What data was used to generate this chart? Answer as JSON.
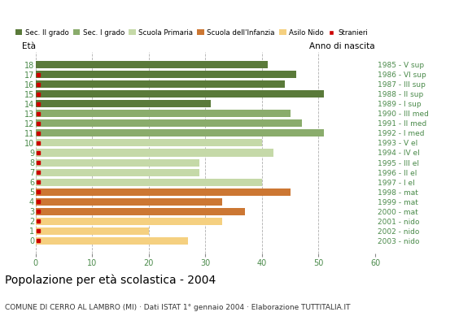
{
  "ages": [
    18,
    17,
    16,
    15,
    14,
    13,
    12,
    11,
    10,
    9,
    8,
    7,
    6,
    5,
    4,
    3,
    2,
    1,
    0
  ],
  "anno_di_nascita": [
    "1985 - V sup",
    "1986 - VI sup",
    "1987 - III sup",
    "1988 - II sup",
    "1989 - I sup",
    "1990 - III med",
    "1991 - II med",
    "1992 - I med",
    "1993 - V el",
    "1994 - IV el",
    "1995 - III el",
    "1996 - II el",
    "1997 - I el",
    "1998 - mat",
    "1999 - mat",
    "2000 - mat",
    "2001 - nido",
    "2002 - nido",
    "2003 - nido"
  ],
  "bar_values": [
    41,
    46,
    44,
    51,
    31,
    45,
    47,
    51,
    40,
    42,
    29,
    29,
    40,
    45,
    33,
    37,
    33,
    20,
    27
  ],
  "bar_colors": [
    "#5a7a3a",
    "#5a7a3a",
    "#5a7a3a",
    "#5a7a3a",
    "#5a7a3a",
    "#8aac6c",
    "#8aac6c",
    "#8aac6c",
    "#c5d9a8",
    "#c5d9a8",
    "#c5d9a8",
    "#c5d9a8",
    "#c5d9a8",
    "#cc7733",
    "#cc7733",
    "#cc7733",
    "#f5d080",
    "#f5d080",
    "#f5d080"
  ],
  "stranieri_show": [
    false,
    true,
    true,
    true,
    true,
    true,
    true,
    true,
    true,
    true,
    true,
    true,
    true,
    true,
    true,
    true,
    true,
    true,
    true
  ],
  "stranieri_color": "#cc0000",
  "legend_labels": [
    "Sec. II grado",
    "Sec. I grado",
    "Scuola Primaria",
    "Scuola dell'Infanzia",
    "Asilo Nido",
    "Stranieri"
  ],
  "legend_colors": [
    "#5a7a3a",
    "#8aac6c",
    "#c5d9a8",
    "#cc7733",
    "#f5d080",
    "#cc0000"
  ],
  "title": "Popolazione per età scolastica - 2004",
  "subtitle": "COMUNE DI CERRO AL LAMBRO (MI) · Dati ISTAT 1° gennaio 2004 · Elaborazione TUTTITALIA.IT",
  "ylabel_left": "Età",
  "ylabel_right": "Anno di nascita",
  "xlim": [
    0,
    60
  ],
  "xticks": [
    0,
    10,
    20,
    30,
    40,
    50,
    60
  ],
  "bar_height": 0.75,
  "fig_width": 5.8,
  "fig_height": 4.0,
  "dpi": 100,
  "background_color": "#ffffff",
  "grid_color": "#b0b0b0",
  "tick_color": "#4a8a4a",
  "title_fontsize": 10,
  "subtitle_fontsize": 6.5
}
